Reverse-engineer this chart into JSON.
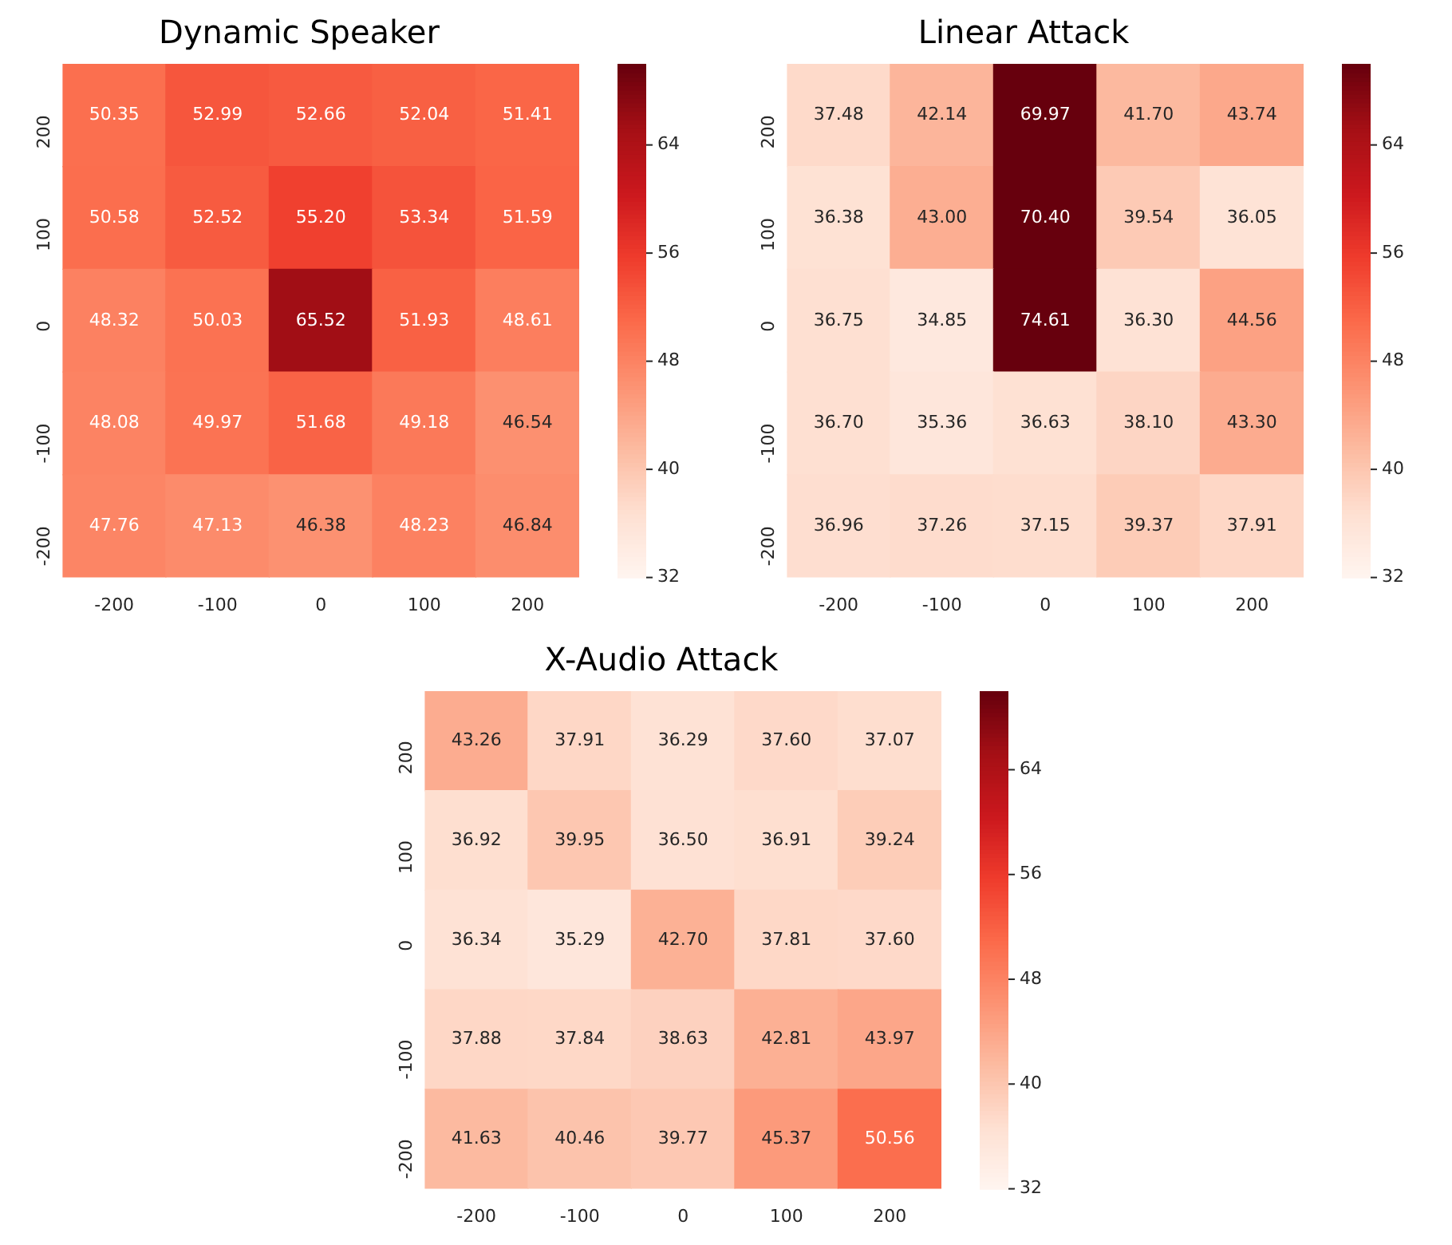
{
  "chart_data": [
    {
      "type": "heatmap",
      "title": "Dynamic Speaker",
      "categories": [
        "-200",
        "-100",
        "0",
        "100",
        "200"
      ],
      "y_categories": [
        "200",
        "100",
        "0",
        "-100",
        "-200"
      ],
      "cells": [
        [
          50.35,
          52.99,
          52.66,
          52.04,
          51.41
        ],
        [
          50.58,
          52.52,
          55.2,
          53.34,
          51.59
        ],
        [
          48.32,
          50.03,
          65.52,
          51.93,
          48.61
        ],
        [
          48.08,
          49.97,
          51.68,
          49.18,
          46.54
        ],
        [
          47.76,
          47.13,
          46.38,
          48.23,
          46.84
        ]
      ],
      "cell_labels": [
        [
          "50.35",
          "52.99",
          "52.66",
          "52.04",
          "51.41"
        ],
        [
          "50.58",
          "52.52",
          "55.20",
          "53.34",
          "51.59"
        ],
        [
          "48.32",
          "50.03",
          "65.52",
          "51.93",
          "48.61"
        ],
        [
          "48.08",
          "49.97",
          "51.68",
          "49.18",
          "46.54"
        ],
        [
          "47.76",
          "47.13",
          "46.38",
          "48.23",
          "46.84"
        ]
      ],
      "clim": [
        32,
        70
      ],
      "cticks": [
        32,
        40,
        48,
        56,
        64
      ]
    },
    {
      "type": "heatmap",
      "title": "Linear Attack",
      "categories": [
        "-200",
        "-100",
        "0",
        "100",
        "200"
      ],
      "y_categories": [
        "200",
        "100",
        "0",
        "-100",
        "-200"
      ],
      "cells": [
        [
          37.48,
          42.14,
          69.97,
          41.7,
          43.74
        ],
        [
          36.38,
          43.0,
          70.4,
          39.54,
          36.05
        ],
        [
          36.75,
          34.85,
          74.61,
          36.3,
          44.56
        ],
        [
          36.7,
          35.36,
          36.63,
          38.1,
          43.3
        ],
        [
          36.96,
          37.26,
          37.15,
          39.37,
          37.91
        ]
      ],
      "cell_labels": [
        [
          "37.48",
          "42.14",
          "69.97",
          "41.70",
          "43.74"
        ],
        [
          "36.38",
          "43.00",
          "70.40",
          "39.54",
          "36.05"
        ],
        [
          "36.75",
          "34.85",
          "74.61",
          "36.30",
          "44.56"
        ],
        [
          "36.70",
          "35.36",
          "36.63",
          "38.10",
          "43.30"
        ],
        [
          "36.96",
          "37.26",
          "37.15",
          "39.37",
          "37.91"
        ]
      ],
      "clim": [
        32,
        70
      ],
      "cticks": [
        32,
        40,
        48,
        56,
        64
      ]
    },
    {
      "type": "heatmap",
      "title": "X-Audio Attack",
      "categories": [
        "-200",
        "-100",
        "0",
        "100",
        "200"
      ],
      "y_categories": [
        "200",
        "100",
        "0",
        "-100",
        "-200"
      ],
      "cells": [
        [
          43.26,
          37.91,
          36.29,
          37.6,
          37.07
        ],
        [
          36.92,
          39.95,
          36.5,
          36.91,
          39.24
        ],
        [
          36.34,
          35.29,
          42.7,
          37.81,
          37.6
        ],
        [
          37.88,
          37.84,
          38.63,
          42.81,
          43.97
        ],
        [
          41.63,
          40.46,
          39.77,
          45.37,
          50.56
        ]
      ],
      "cell_labels": [
        [
          "43.26",
          "37.91",
          "36.29",
          "37.60",
          "37.07"
        ],
        [
          "36.92",
          "39.95",
          "36.50",
          "36.91",
          "39.24"
        ],
        [
          "36.34",
          "35.29",
          "42.70",
          "37.81",
          "37.60"
        ],
        [
          "37.88",
          "37.84",
          "38.63",
          "42.81",
          "43.97"
        ],
        [
          "41.63",
          "40.46",
          "39.77",
          "45.37",
          "50.56"
        ]
      ],
      "clim": [
        32,
        70
      ],
      "cticks": [
        32,
        40,
        48,
        56,
        64
      ]
    }
  ]
}
